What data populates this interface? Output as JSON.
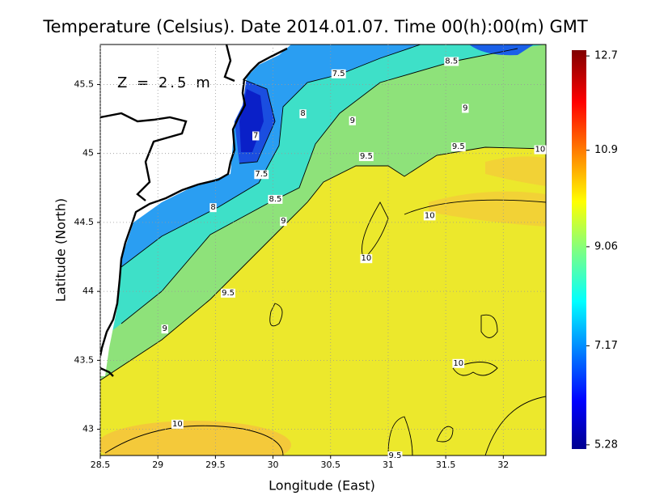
{
  "chart_data": {
    "type": "contour",
    "title": "Temperature (Celsius). Date 2014.01.07. Time 00(h):00(m)  GMT",
    "annotation": "Z = 2.5 m",
    "xlabel": "Longitude (East)",
    "ylabel": "Latitude (North)",
    "xlim": [
      28.5,
      32.37
    ],
    "ylim": [
      42.81,
      45.79
    ],
    "xticks": [
      28.5,
      29,
      29.5,
      30,
      30.5,
      31,
      31.5,
      32
    ],
    "yticks": [
      43,
      43.5,
      44,
      44.5,
      45,
      45.5
    ],
    "grid": true,
    "colorbar": {
      "lim": [
        5.2,
        12.81
      ],
      "ticks": [
        5.28,
        7.17,
        9.06,
        10.9,
        12.7
      ]
    },
    "contour_labels": [
      {
        "value": 7.5,
        "x": 30.57,
        "y": 45.58
      },
      {
        "value": 8.5,
        "x": 31.55,
        "y": 45.67
      },
      {
        "value": 8,
        "x": 30.26,
        "y": 45.29
      },
      {
        "value": 9,
        "x": 30.69,
        "y": 45.24
      },
      {
        "value": 9,
        "x": 31.67,
        "y": 45.33
      },
      {
        "value": 7,
        "x": 29.85,
        "y": 45.13
      },
      {
        "value": 9.5,
        "x": 30.81,
        "y": 44.98
      },
      {
        "value": 9.5,
        "x": 31.61,
        "y": 45.05
      },
      {
        "value": 10,
        "x": 32.32,
        "y": 45.03
      },
      {
        "value": 7.5,
        "x": 29.9,
        "y": 44.85
      },
      {
        "value": 8.5,
        "x": 30.02,
        "y": 44.67
      },
      {
        "value": 8,
        "x": 29.48,
        "y": 44.61
      },
      {
        "value": 9,
        "x": 30.09,
        "y": 44.51
      },
      {
        "value": 10,
        "x": 31.36,
        "y": 44.55
      },
      {
        "value": 10,
        "x": 30.81,
        "y": 44.24
      },
      {
        "value": 9.5,
        "x": 29.61,
        "y": 43.99
      },
      {
        "value": 9,
        "x": 29.06,
        "y": 43.73
      },
      {
        "value": 10,
        "x": 31.61,
        "y": 43.48
      },
      {
        "value": 10,
        "x": 29.17,
        "y": 43.04
      },
      {
        "value": 9.5,
        "x": 31.06,
        "y": 42.81
      }
    ]
  }
}
